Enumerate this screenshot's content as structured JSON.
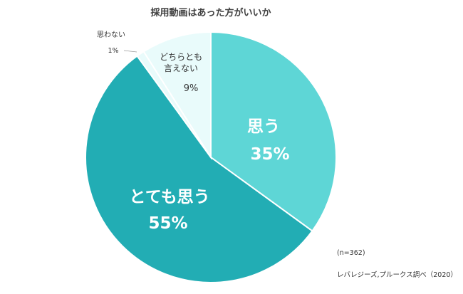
{
  "chart_data": {
    "type": "pie",
    "title": "採用動画はあった方がいいか",
    "categories": [
      "思う",
      "とても思う",
      "思わない",
      "どちらとも言えない"
    ],
    "values": [
      35,
      55,
      1,
      9
    ],
    "value_labels": [
      "35%",
      "55%",
      "1%",
      "9%"
    ],
    "colors": [
      "#5ed6d6",
      "#22adb4",
      "#e9fbfb",
      "#e9fbfb"
    ],
    "sample_note": "(n=362)",
    "source": "レバレジーズ,プルークス調べ（2020）"
  }
}
